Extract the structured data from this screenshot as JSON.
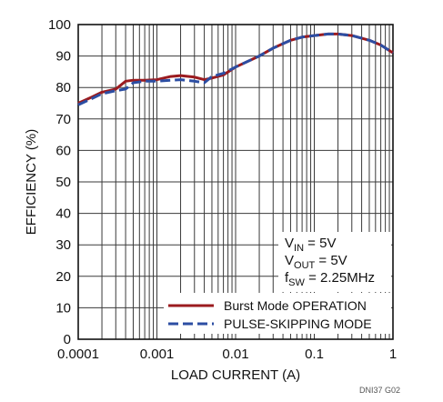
{
  "chart_data": {
    "type": "line",
    "xlabel": "LOAD CURRENT (A)",
    "ylabel": "EFFICIENCY (%)",
    "xscale": "log",
    "xlim": [
      0.0001,
      1
    ],
    "ylim": [
      0,
      100
    ],
    "x_ticks": [
      0.0001,
      0.001,
      0.01,
      0.1,
      1
    ],
    "x_tick_labels": [
      "0.0001",
      "0.001",
      "0.01",
      "0.1",
      "1"
    ],
    "y_ticks": [
      0,
      10,
      20,
      30,
      40,
      50,
      60,
      70,
      80,
      90,
      100
    ],
    "y_tick_labels": [
      "0",
      "10",
      "20",
      "30",
      "40",
      "50",
      "60",
      "70",
      "80",
      "90",
      "100"
    ],
    "grid": true,
    "legend_position": "bottom-right",
    "conditions": [
      {
        "main": "V",
        "sub": "IN",
        "rest": " = 5V"
      },
      {
        "main": "V",
        "sub": "OUT",
        "rest": " = 5V"
      },
      {
        "main": "f",
        "sub": "SW",
        "rest": " = 2.25MHz"
      }
    ],
    "series": [
      {
        "name": "Burst Mode OPERATION",
        "color": "#9b1b1f",
        "dash": "solid",
        "x": [
          0.0001,
          0.00015,
          0.0002,
          0.0003,
          0.0004,
          0.0005,
          0.0007,
          0.001,
          0.0015,
          0.002,
          0.003,
          0.004,
          0.005,
          0.007,
          0.01,
          0.02,
          0.03,
          0.05,
          0.07,
          0.1,
          0.15,
          0.2,
          0.3,
          0.5,
          0.7,
          1
        ],
        "y": [
          75,
          77,
          78.5,
          79.5,
          82,
          82.3,
          82.3,
          82.5,
          83.5,
          83.8,
          83.3,
          82.5,
          83,
          84,
          86.5,
          90,
          92.5,
          95,
          96,
          96.5,
          97,
          97,
          96.5,
          95,
          93.5,
          91
        ]
      },
      {
        "name": "PULSE-SKIPPING MODE",
        "color": "#2c4ea3",
        "dash": "dashed",
        "x": [
          0.0001,
          0.00015,
          0.0002,
          0.0003,
          0.0004,
          0.0005,
          0.0007,
          0.001,
          0.0015,
          0.002,
          0.003,
          0.004,
          0.005,
          0.007,
          0.01,
          0.02,
          0.03,
          0.05,
          0.07,
          0.1,
          0.15,
          0.2,
          0.3,
          0.5,
          0.7,
          1
        ],
        "y": [
          74.5,
          76.5,
          78,
          79,
          79.5,
          81.5,
          82,
          82,
          82.3,
          82.5,
          82,
          81.5,
          83.5,
          84.5,
          86.5,
          90,
          92.5,
          95,
          96,
          96.5,
          97,
          97,
          96.5,
          95,
          93.5,
          91
        ]
      }
    ],
    "figure_id": "DNI37 G02"
  }
}
